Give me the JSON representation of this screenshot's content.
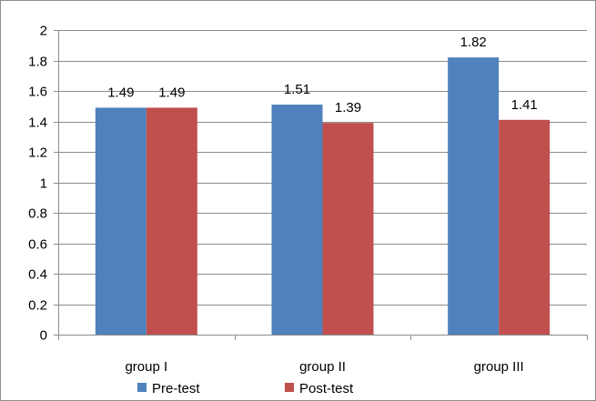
{
  "chart_data": {
    "type": "bar",
    "categories": [
      "group I",
      "group II",
      "group III"
    ],
    "series": [
      {
        "name": "Pre-test",
        "color": "#4F81BD",
        "values": [
          1.49,
          1.51,
          1.82
        ],
        "labels": [
          "1.49",
          "1.51",
          "1.82"
        ]
      },
      {
        "name": "Post-test",
        "color": "#C0504D",
        "values": [
          1.49,
          1.39,
          1.41
        ],
        "labels": [
          "1.49",
          "1.39",
          "1.41"
        ]
      }
    ],
    "ylim": [
      0,
      2
    ],
    "yticks": [
      0,
      0.2,
      0.4,
      0.6,
      0.8,
      1,
      1.2,
      1.4,
      1.6,
      1.8,
      2
    ],
    "ytick_labels": [
      "0",
      "0.2",
      "0.4",
      "0.6",
      "0.8",
      "1",
      "1.2",
      "1.4",
      "1.6",
      "1.8",
      "2"
    ],
    "grid": true,
    "legend_position": "bottom"
  }
}
